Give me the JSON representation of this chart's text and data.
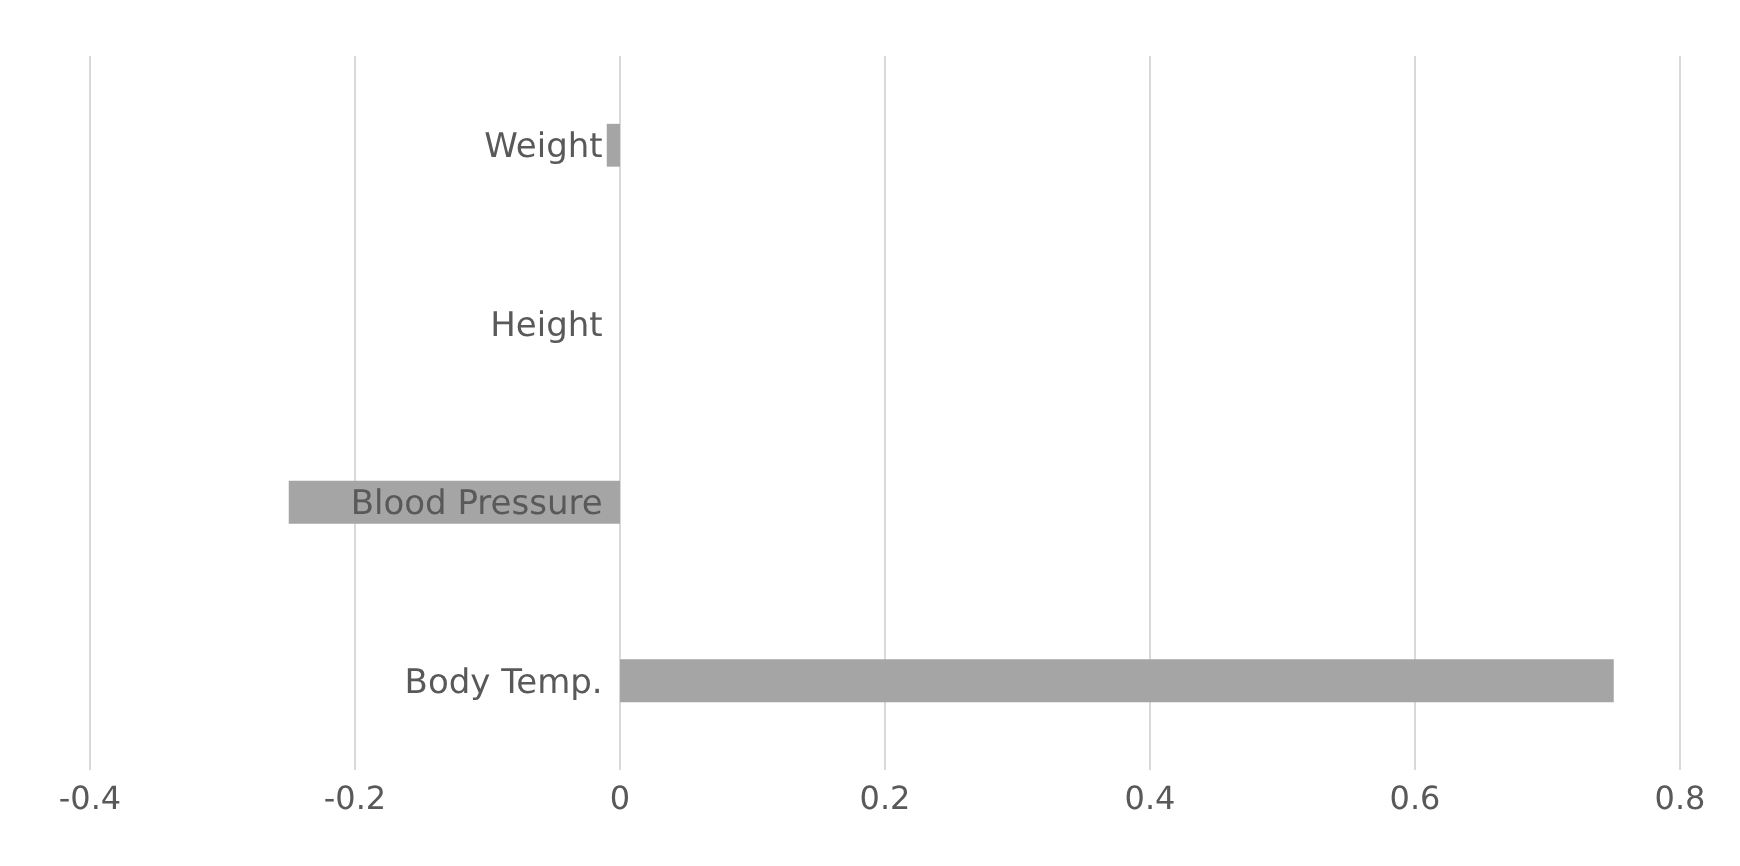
{
  "chart_data": {
    "type": "bar",
    "orientation": "horizontal",
    "categories": [
      "Weight",
      "Height",
      "Blood Pressure",
      "Body Temp."
    ],
    "values": [
      -0.01,
      0,
      -0.25,
      0.75
    ],
    "color": "#a5a5a5",
    "xlim": [
      -0.4,
      0.8
    ],
    "xticks": [
      -0.4,
      -0.2,
      0,
      0.2,
      0.4,
      0.6,
      0.8
    ],
    "grid": "x"
  }
}
